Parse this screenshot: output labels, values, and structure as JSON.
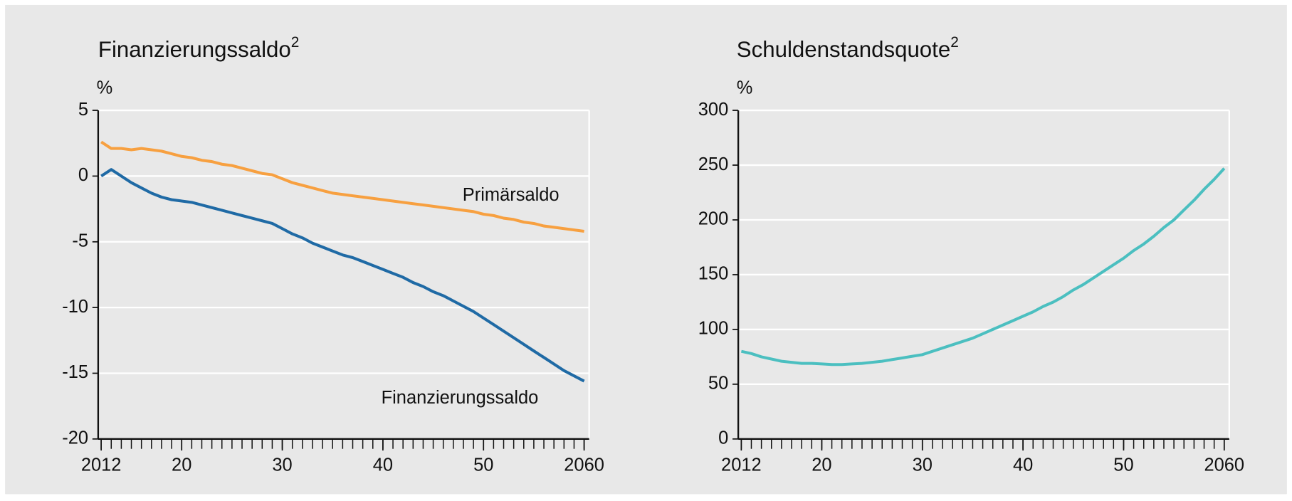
{
  "chart_data": [
    {
      "type": "line",
      "title": "Finanzierungssaldo",
      "title_note": "2",
      "ylabel": "%",
      "x": [
        2012,
        2013,
        2014,
        2015,
        2016,
        2017,
        2018,
        2019,
        2020,
        2021,
        2022,
        2023,
        2024,
        2025,
        2026,
        2027,
        2028,
        2029,
        2030,
        2031,
        2032,
        2033,
        2034,
        2035,
        2036,
        2037,
        2038,
        2039,
        2040,
        2041,
        2042,
        2043,
        2044,
        2045,
        2046,
        2047,
        2048,
        2049,
        2050,
        2051,
        2052,
        2053,
        2054,
        2055,
        2056,
        2057,
        2058,
        2059,
        2060
      ],
      "series": [
        {
          "name": "Primärsaldo",
          "color": "#f7a040",
          "values": [
            2.6,
            2.1,
            2.1,
            2.0,
            2.1,
            2.0,
            1.9,
            1.7,
            1.5,
            1.4,
            1.2,
            1.1,
            0.9,
            0.8,
            0.6,
            0.4,
            0.2,
            0.1,
            -0.2,
            -0.5,
            -0.7,
            -0.9,
            -1.1,
            -1.3,
            -1.4,
            -1.5,
            -1.6,
            -1.7,
            -1.8,
            -1.9,
            -2.0,
            -2.1,
            -2.2,
            -2.3,
            -2.4,
            -2.5,
            -2.6,
            -2.7,
            -2.9,
            -3.0,
            -3.2,
            -3.3,
            -3.5,
            -3.6,
            -3.8,
            -3.9,
            -4.0,
            -4.1,
            -4.2
          ]
        },
        {
          "name": "Finanzierungssaldo",
          "color": "#1f6aa5",
          "values": [
            0.0,
            0.5,
            0.0,
            -0.5,
            -0.9,
            -1.3,
            -1.6,
            -1.8,
            -1.9,
            -2.0,
            -2.2,
            -2.4,
            -2.6,
            -2.8,
            -3.0,
            -3.2,
            -3.4,
            -3.6,
            -4.0,
            -4.4,
            -4.7,
            -5.1,
            -5.4,
            -5.7,
            -6.0,
            -6.2,
            -6.5,
            -6.8,
            -7.1,
            -7.4,
            -7.7,
            -8.1,
            -8.4,
            -8.8,
            -9.1,
            -9.5,
            -9.9,
            -10.3,
            -10.8,
            -11.3,
            -11.8,
            -12.3,
            -12.8,
            -13.3,
            -13.8,
            -14.3,
            -14.8,
            -15.2,
            -15.6
          ]
        }
      ],
      "xlim": [
        2011.7,
        2060.5
      ],
      "xticks": [
        2012,
        {
          "value": 2020,
          "label": "20"
        },
        {
          "value": 2030,
          "label": "30"
        },
        {
          "value": 2040,
          "label": "40"
        },
        {
          "value": 2050,
          "label": "50"
        },
        2060
      ],
      "ylim": [
        -20,
        5
      ],
      "yticks": [
        -20,
        -15,
        -10,
        -5,
        0,
        5
      ],
      "grid": true
    },
    {
      "type": "line",
      "title": "Schuldenstandsquote",
      "title_note": "2",
      "ylabel": "%",
      "x": [
        2012,
        2013,
        2014,
        2015,
        2016,
        2017,
        2018,
        2019,
        2020,
        2021,
        2022,
        2023,
        2024,
        2025,
        2026,
        2027,
        2028,
        2029,
        2030,
        2031,
        2032,
        2033,
        2034,
        2035,
        2036,
        2037,
        2038,
        2039,
        2040,
        2041,
        2042,
        2043,
        2044,
        2045,
        2046,
        2047,
        2048,
        2049,
        2050,
        2051,
        2052,
        2053,
        2054,
        2055,
        2056,
        2057,
        2058,
        2059,
        2060
      ],
      "series": [
        {
          "name": "Schuldenstandsquote",
          "color": "#4bbfc0",
          "values": [
            80,
            78,
            75,
            73,
            71,
            70,
            69,
            69,
            68.5,
            68,
            68,
            68.5,
            69,
            70,
            71,
            72.5,
            74,
            75.5,
            77,
            80,
            83,
            86,
            89,
            92,
            96,
            100,
            104,
            108,
            112,
            116,
            121,
            125,
            130,
            136,
            141,
            147,
            153,
            159,
            165,
            172,
            178,
            185,
            193,
            200,
            209,
            218,
            228,
            237,
            247
          ]
        }
      ],
      "xlim": [
        2011.7,
        2060.5
      ],
      "xticks": [
        2012,
        {
          "value": 2020,
          "label": "20"
        },
        {
          "value": 2030,
          "label": "30"
        },
        {
          "value": 2040,
          "label": "40"
        },
        {
          "value": 2050,
          "label": "50"
        },
        2060
      ],
      "ylim": [
        0,
        300
      ],
      "yticks": [
        0,
        50,
        100,
        150,
        200,
        250,
        300
      ],
      "grid": true
    }
  ]
}
